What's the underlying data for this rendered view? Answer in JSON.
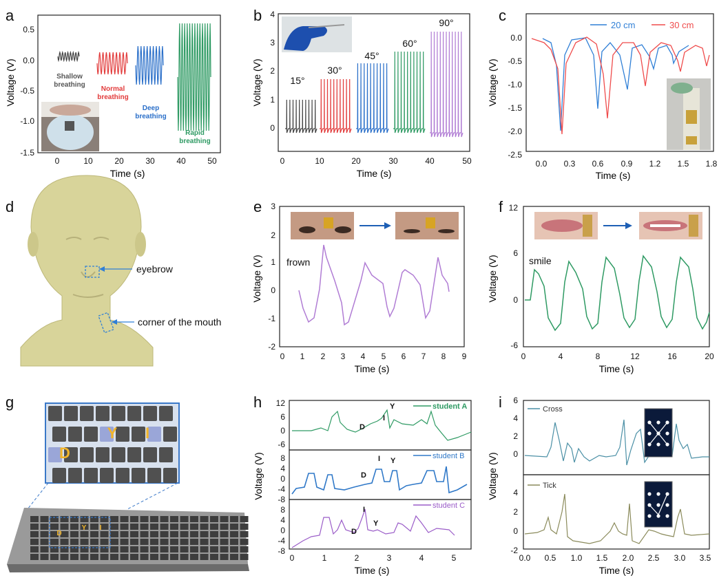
{
  "panel_letters": [
    "a",
    "b",
    "c",
    "d",
    "e",
    "f",
    "g",
    "h",
    "i"
  ],
  "panel_a": {
    "ylabel": "Voltage (V)",
    "xlabel": "Time (s)",
    "yticks": [
      "0.5",
      "0.0",
      "-0.5",
      "-1.0",
      "-1.5"
    ],
    "xticks": [
      "0",
      "10",
      "20",
      "30",
      "40",
      "50"
    ],
    "labels": [
      {
        "text": "Shallow",
        "color": "#555555"
      },
      {
        "text": "breathing",
        "color": "#555555"
      },
      {
        "text": "Normal",
        "color": "#e23b3b"
      },
      {
        "text": "breathing",
        "color": "#e23b3b"
      },
      {
        "text": "Deep",
        "color": "#2a6fc9"
      },
      {
        "text": "breathing",
        "color": "#2a6fc9"
      },
      {
        "text": "Rapid",
        "color": "#2e9a63"
      },
      {
        "text": "breathing",
        "color": "#2e9a63"
      }
    ]
  },
  "panel_b": {
    "ylabel": "Voltage (V)",
    "xlabel": "Time (s)",
    "yticks": [
      "0",
      "1",
      "2",
      "3",
      "4"
    ],
    "xticks": [
      "0",
      "10",
      "20",
      "30",
      "40",
      "50"
    ],
    "angles": [
      "15°",
      "30°",
      "45°",
      "60°",
      "90°"
    ]
  },
  "panel_c": {
    "ylabel": "Voltage (V)",
    "xlabel": "Time (s)",
    "yticks": [
      "0.0",
      "-0.5",
      "-1.0",
      "-1.5",
      "-2.0",
      "-2.5"
    ],
    "xticks": [
      "0.0",
      "0.3",
      "0.6",
      "0.9",
      "1.2",
      "1.5",
      "1.8"
    ],
    "legend": [
      {
        "name": "20 cm",
        "color": "#2f7fd6"
      },
      {
        "name": "30 cm",
        "color": "#ef4b4b"
      }
    ]
  },
  "panel_d": {
    "labels": [
      "eyebrow",
      "corner of the mouth"
    ]
  },
  "panel_e": {
    "ylabel": "Voltage (V)",
    "xlabel": "Time (s)",
    "yticks": [
      "3",
      "2",
      "1",
      "0",
      "-1",
      "-2"
    ],
    "xticks": [
      "0",
      "1",
      "2",
      "3",
      "4",
      "5",
      "6",
      "7",
      "8",
      "9"
    ],
    "annotation": "frown"
  },
  "panel_f": {
    "ylabel": "Voltage (V)",
    "xlabel": "Time (s)",
    "yticks": [
      "12",
      "6",
      "0",
      "-6"
    ],
    "xticks": [
      "0",
      "4",
      "8",
      "12",
      "16",
      "20"
    ],
    "annotation": "smile"
  },
  "panel_g": {
    "keys": [
      "Y",
      "I",
      "D"
    ],
    "small_keys": [
      "D",
      "Y",
      "I"
    ]
  },
  "panel_h": {
    "ylabel": "Voltage (V)",
    "xlabel": "Time (s)",
    "xticks": [
      "0",
      "1",
      "2",
      "3",
      "4",
      "5"
    ],
    "subplots": [
      {
        "name": "student A",
        "color": "#2e9a63",
        "yticks": [
          "12",
          "6",
          "0",
          "-6"
        ],
        "letters": [
          "D",
          "I",
          "Y"
        ]
      },
      {
        "name": "student B",
        "color": "#2f78c8",
        "yticks": [
          "8",
          "4",
          "0",
          "-4",
          "-8"
        ],
        "letters": [
          "D",
          "I",
          "Y"
        ]
      },
      {
        "name": "student C",
        "color": "#9a5cc8",
        "yticks": [
          "8",
          "4",
          "0",
          "-4",
          "-8"
        ],
        "letters": [
          "D",
          "I",
          "Y"
        ]
      }
    ]
  },
  "panel_i": {
    "ylabel": "Voltage (V)",
    "xlabel": "Time (s)",
    "xticks": [
      "0.0",
      "0.5",
      "1.0",
      "1.5",
      "2.0",
      "2.5",
      "3.0",
      "3.5"
    ],
    "subplots": [
      {
        "name": "Cross",
        "color": "#4a8fa5",
        "yticks": [
          "6",
          "4",
          "2",
          "0"
        ]
      },
      {
        "name": "Tick",
        "color": "#8a8a5a",
        "yticks": [
          "4",
          "2",
          "0",
          "-2"
        ]
      }
    ]
  }
}
